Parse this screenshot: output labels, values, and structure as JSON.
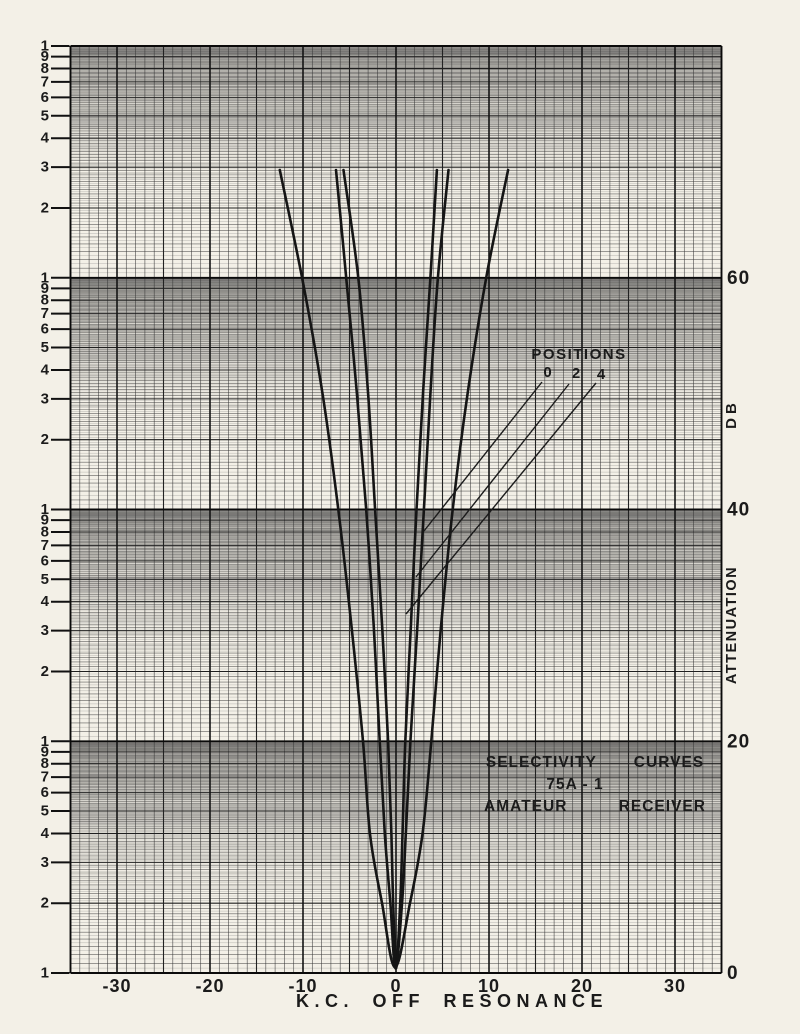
{
  "page_bg": "#f3f0e7",
  "ink_color": "#1a1a1a",
  "chart_data": {
    "type": "line",
    "title_lines": [
      "SELECTIVITY CURVES",
      "75A - 1",
      "AMATEUR RECEIVER"
    ],
    "xlabel": "K.C. OFF RESONANCE",
    "right_axis": {
      "unit_label": "DB",
      "axis_label": "ATTENUATION",
      "ticks": [
        "60",
        "40",
        "20",
        "0"
      ],
      "tick_values": [
        60,
        40,
        20,
        0
      ],
      "range_db": [
        0,
        80
      ]
    },
    "x_axis": {
      "ticks": [
        "-30",
        "-20",
        "-10",
        "0",
        "10",
        "20",
        "30"
      ],
      "tick_values": [
        -30,
        -20,
        -10,
        0,
        10,
        20,
        30
      ],
      "range": [
        -35,
        35
      ]
    },
    "log_scale": {
      "decades": 4,
      "labels_per_decade": [
        "1",
        "9",
        "8",
        "7",
        "6",
        "5",
        "4",
        "3",
        "2"
      ],
      "bottom_label": "1",
      "db_per_decade": 20
    },
    "annotation": {
      "label": "POSITIONS",
      "items": [
        "0",
        "2",
        "4"
      ]
    },
    "series": [
      {
        "name": "0",
        "points_kc_db": [
          [
            -5.65,
            69.3
          ],
          [
            -4.05,
            60
          ],
          [
            -3.0,
            50
          ],
          [
            -2.25,
            40
          ],
          [
            -1.5,
            30
          ],
          [
            -0.85,
            20
          ],
          [
            -0.5,
            12
          ],
          [
            -0.3,
            6
          ],
          [
            0.0,
            0.4
          ],
          [
            0.45,
            6
          ],
          [
            0.7,
            12
          ],
          [
            1.0,
            20
          ],
          [
            1.6,
            30
          ],
          [
            2.2,
            40
          ],
          [
            2.9,
            50
          ],
          [
            3.7,
            60
          ],
          [
            4.4,
            69.3
          ]
        ]
      },
      {
        "name": "2",
        "points_kc_db": [
          [
            -6.45,
            69.3
          ],
          [
            -5.35,
            60
          ],
          [
            -4.2,
            50
          ],
          [
            -3.2,
            40
          ],
          [
            -2.4,
            30
          ],
          [
            -1.75,
            20
          ],
          [
            -1.2,
            12
          ],
          [
            -0.6,
            6
          ],
          [
            -0.05,
            0.4
          ],
          [
            0.65,
            6
          ],
          [
            1.05,
            12
          ],
          [
            1.55,
            20
          ],
          [
            2.3,
            30
          ],
          [
            3.0,
            40
          ],
          [
            3.7,
            50
          ],
          [
            4.5,
            60
          ],
          [
            5.65,
            69.3
          ]
        ]
      },
      {
        "name": "4",
        "points_kc_db": [
          [
            -12.5,
            69.3
          ],
          [
            -10.1,
            60
          ],
          [
            -7.9,
            50
          ],
          [
            -6.2,
            40
          ],
          [
            -4.8,
            30
          ],
          [
            -3.55,
            20
          ],
          [
            -2.8,
            12
          ],
          [
            -1.5,
            6
          ],
          [
            -0.1,
            0.5
          ],
          [
            1.5,
            6
          ],
          [
            2.85,
            12
          ],
          [
            3.8,
            20
          ],
          [
            4.85,
            30
          ],
          [
            6.1,
            40
          ],
          [
            7.7,
            50
          ],
          [
            9.7,
            60
          ],
          [
            12.05,
            69.3
          ]
        ]
      }
    ]
  }
}
